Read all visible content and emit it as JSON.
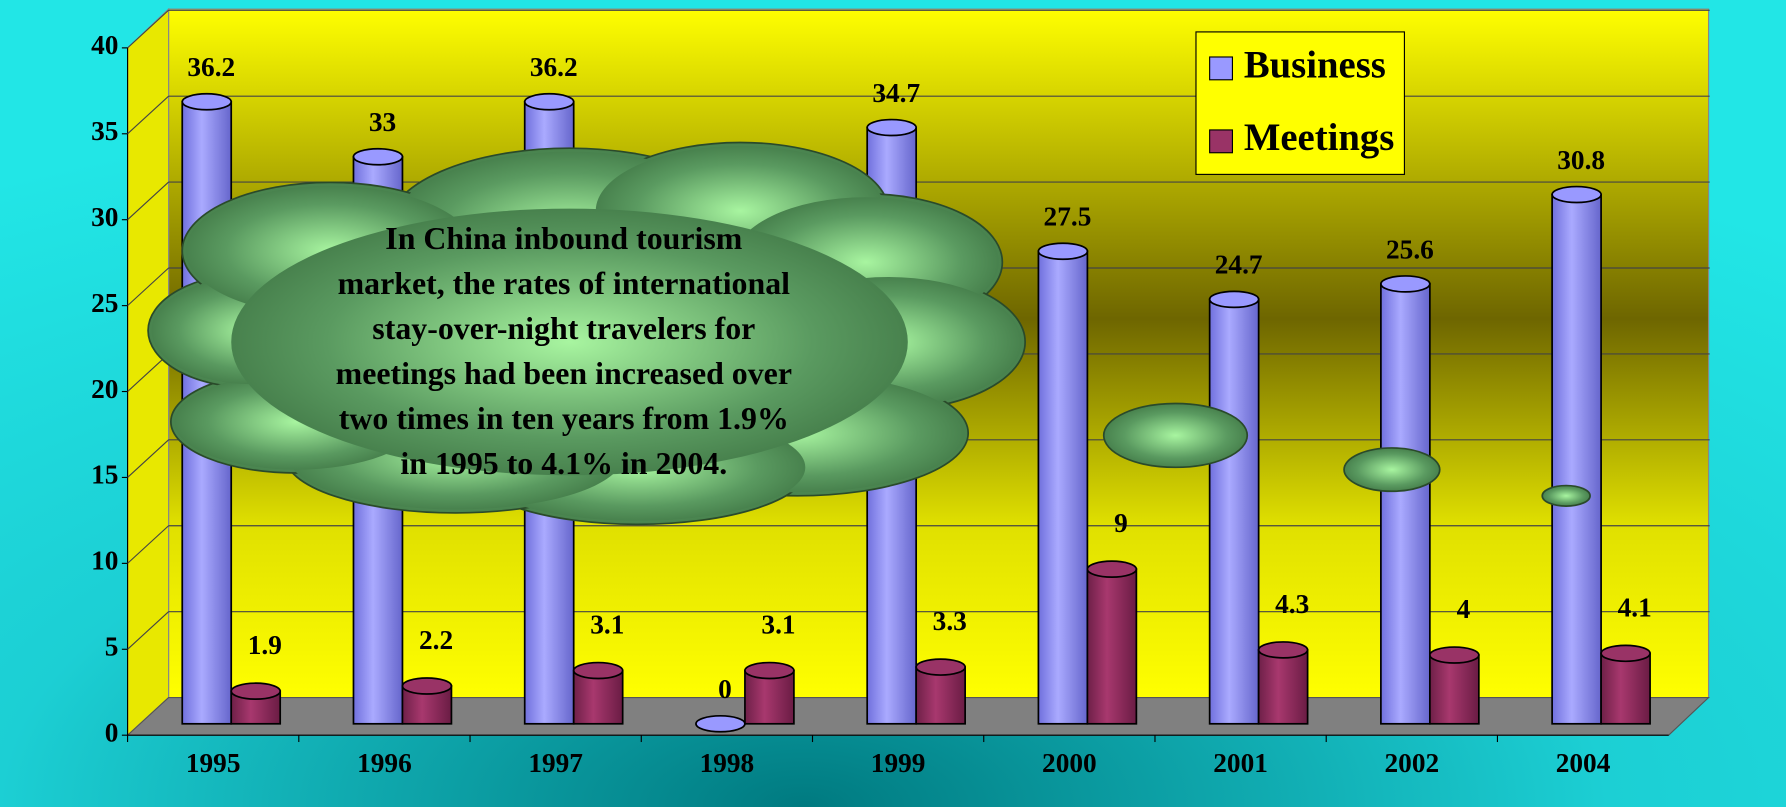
{
  "chart_data": {
    "type": "bar3d",
    "categories": [
      "1995",
      "1996",
      "1997",
      "1998",
      "1999",
      "2000",
      "2001",
      "2002",
      "2004"
    ],
    "series": [
      {
        "name": "Business",
        "color": "#9999ff",
        "values": [
          36.2,
          33,
          36.2,
          0,
          34.7,
          27.5,
          24.7,
          25.6,
          30.8
        ]
      },
      {
        "name": "Meetings",
        "color": "#993366",
        "values": [
          1.9,
          2.2,
          3.1,
          3.1,
          3.3,
          9,
          4.3,
          4,
          4.1
        ]
      }
    ],
    "ylim": [
      0,
      40
    ],
    "yticks": [
      0,
      5,
      10,
      15,
      20,
      25,
      30,
      35,
      40
    ],
    "grid": true,
    "legend": "top-right",
    "annotation": [
      "In China inbound tourism",
      "market, the rates of international",
      "stay-over-night travelers for",
      "meetings had been increased over",
      "two times in ten years from 1.9%",
      "in 1995 to 4.1% in 2004."
    ]
  }
}
